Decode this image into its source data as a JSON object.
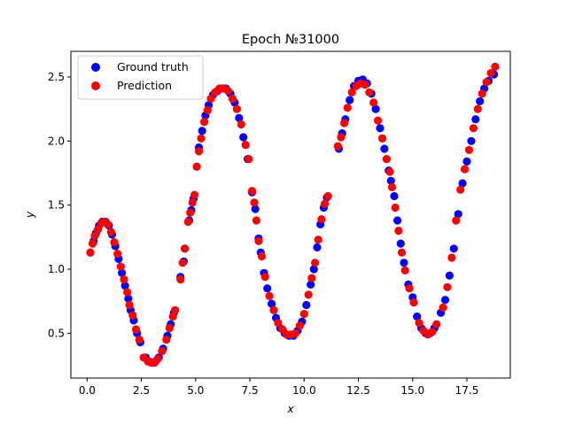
{
  "chart_data": {
    "type": "scatter",
    "title": "Epoch №31000",
    "xlabel": "x",
    "ylabel": "y",
    "xlim": [
      -0.75,
      19.5
    ],
    "ylim": [
      0.15,
      2.7
    ],
    "xticks": [
      0.0,
      2.5,
      5.0,
      7.5,
      10.0,
      12.5,
      15.0,
      17.5
    ],
    "xtick_labels": [
      "0.0",
      "2.5",
      "5.0",
      "7.5",
      "10.0",
      "12.5",
      "15.0",
      "17.5"
    ],
    "yticks": [
      0.5,
      1.0,
      1.5,
      2.0,
      2.5
    ],
    "ytick_labels": [
      "0.5",
      "1.0",
      "1.5",
      "2.0",
      "2.5"
    ],
    "grid": false,
    "legend_placement": "top-left",
    "series": [
      {
        "name": "Ground truth",
        "color": "#0000ff",
        "points": [
          [
            0.15,
            1.13
          ],
          [
            0.3,
            1.22
          ],
          [
            0.4,
            1.28
          ],
          [
            0.55,
            1.34
          ],
          [
            0.7,
            1.37
          ],
          [
            0.85,
            1.37
          ],
          [
            1.0,
            1.34
          ],
          [
            1.15,
            1.27
          ],
          [
            1.3,
            1.18
          ],
          [
            1.45,
            1.08
          ],
          [
            1.6,
            0.97
          ],
          [
            1.75,
            0.87
          ],
          [
            1.9,
            0.77
          ],
          [
            2.0,
            0.68
          ],
          [
            2.15,
            0.6
          ],
          [
            2.3,
            0.5
          ],
          [
            2.45,
            0.43
          ],
          [
            2.7,
            0.31
          ],
          [
            2.85,
            0.28
          ],
          [
            3.0,
            0.27
          ],
          [
            3.15,
            0.28
          ],
          [
            3.3,
            0.31
          ],
          [
            3.5,
            0.38
          ],
          [
            3.7,
            0.48
          ],
          [
            3.85,
            0.57
          ],
          [
            4.0,
            0.66
          ],
          [
            4.3,
            0.94
          ],
          [
            4.45,
            1.06
          ],
          [
            4.5,
            1.16
          ],
          [
            4.7,
            1.38
          ],
          [
            4.8,
            1.46
          ],
          [
            4.9,
            1.55
          ],
          [
            5.05,
            1.8
          ],
          [
            5.15,
            1.95
          ],
          [
            5.3,
            2.08
          ],
          [
            5.45,
            2.2
          ],
          [
            5.6,
            2.28
          ],
          [
            5.8,
            2.36
          ],
          [
            6.0,
            2.39
          ],
          [
            6.2,
            2.41
          ],
          [
            6.4,
            2.41
          ],
          [
            6.6,
            2.37
          ],
          [
            6.8,
            2.3
          ],
          [
            7.0,
            2.18
          ],
          [
            7.2,
            2.03
          ],
          [
            7.4,
            1.86
          ],
          [
            7.6,
            1.6
          ],
          [
            7.75,
            1.47
          ],
          [
            7.9,
            1.24
          ],
          [
            8.0,
            1.13
          ],
          [
            8.15,
            0.97
          ],
          [
            8.3,
            0.85
          ],
          [
            8.5,
            0.73
          ],
          [
            8.7,
            0.62
          ],
          [
            8.9,
            0.54
          ],
          [
            9.1,
            0.5
          ],
          [
            9.3,
            0.48
          ],
          [
            9.5,
            0.48
          ],
          [
            9.7,
            0.52
          ],
          [
            9.9,
            0.59
          ],
          [
            10.1,
            0.72
          ],
          [
            10.3,
            0.88
          ],
          [
            10.45,
            1.0
          ],
          [
            10.6,
            1.17
          ],
          [
            10.75,
            1.35
          ],
          [
            10.9,
            1.48
          ],
          [
            11.05,
            1.56
          ],
          [
            11.6,
            1.94
          ],
          [
            11.75,
            2.06
          ],
          [
            11.9,
            2.17
          ],
          [
            12.1,
            2.32
          ],
          [
            12.3,
            2.43
          ],
          [
            12.5,
            2.47
          ],
          [
            12.7,
            2.48
          ],
          [
            12.9,
            2.45
          ],
          [
            13.1,
            2.37
          ],
          [
            13.3,
            2.25
          ],
          [
            13.5,
            2.1
          ],
          [
            13.7,
            1.94
          ],
          [
            13.9,
            1.77
          ],
          [
            14.0,
            1.69
          ],
          [
            14.15,
            1.57
          ],
          [
            14.3,
            1.38
          ],
          [
            14.45,
            1.2
          ],
          [
            14.6,
            1.05
          ],
          [
            14.8,
            0.88
          ],
          [
            15.0,
            0.78
          ],
          [
            15.2,
            0.63
          ],
          [
            15.4,
            0.54
          ],
          [
            15.6,
            0.5
          ],
          [
            15.8,
            0.5
          ],
          [
            16.0,
            0.54
          ],
          [
            16.3,
            0.66
          ],
          [
            16.5,
            0.76
          ],
          [
            16.7,
            0.95
          ],
          [
            16.9,
            1.16
          ],
          [
            17.1,
            1.43
          ],
          [
            17.3,
            1.67
          ],
          [
            17.5,
            1.84
          ],
          [
            17.7,
            2.0
          ],
          [
            17.9,
            2.17
          ],
          [
            18.1,
            2.31
          ],
          [
            18.3,
            2.41
          ],
          [
            18.5,
            2.47
          ],
          [
            18.75,
            2.52
          ]
        ]
      },
      {
        "name": "Prediction",
        "color": "#ff0000",
        "points": [
          [
            0.15,
            1.13
          ],
          [
            0.25,
            1.2
          ],
          [
            0.35,
            1.26
          ],
          [
            0.5,
            1.31
          ],
          [
            0.65,
            1.36
          ],
          [
            0.8,
            1.37
          ],
          [
            0.95,
            1.35
          ],
          [
            1.1,
            1.29
          ],
          [
            1.25,
            1.21
          ],
          [
            1.4,
            1.12
          ],
          [
            1.55,
            1.02
          ],
          [
            1.7,
            0.92
          ],
          [
            1.85,
            0.82
          ],
          [
            1.95,
            0.72
          ],
          [
            2.1,
            0.64
          ],
          [
            2.25,
            0.53
          ],
          [
            2.4,
            0.45
          ],
          [
            2.6,
            0.31
          ],
          [
            2.8,
            0.28
          ],
          [
            2.95,
            0.27
          ],
          [
            3.1,
            0.27
          ],
          [
            3.25,
            0.3
          ],
          [
            3.45,
            0.36
          ],
          [
            3.65,
            0.45
          ],
          [
            3.8,
            0.54
          ],
          [
            3.95,
            0.63
          ],
          [
            4.05,
            0.68
          ],
          [
            4.3,
            0.92
          ],
          [
            4.4,
            1.05
          ],
          [
            4.5,
            1.16
          ],
          [
            4.65,
            1.37
          ],
          [
            4.75,
            1.44
          ],
          [
            4.85,
            1.52
          ],
          [
            4.95,
            1.58
          ],
          [
            5.05,
            1.8
          ],
          [
            5.15,
            1.92
          ],
          [
            5.25,
            2.02
          ],
          [
            5.4,
            2.15
          ],
          [
            5.55,
            2.24
          ],
          [
            5.7,
            2.33
          ],
          [
            5.9,
            2.38
          ],
          [
            6.1,
            2.41
          ],
          [
            6.3,
            2.41
          ],
          [
            6.5,
            2.39
          ],
          [
            6.7,
            2.33
          ],
          [
            6.9,
            2.25
          ],
          [
            7.1,
            2.13
          ],
          [
            7.3,
            1.97
          ],
          [
            7.45,
            1.86
          ],
          [
            7.6,
            1.61
          ],
          [
            7.7,
            1.52
          ],
          [
            7.8,
            1.38
          ],
          [
            7.9,
            1.22
          ],
          [
            8.05,
            1.1
          ],
          [
            8.2,
            0.94
          ],
          [
            8.4,
            0.79
          ],
          [
            8.6,
            0.68
          ],
          [
            8.8,
            0.58
          ],
          [
            9.0,
            0.53
          ],
          [
            9.2,
            0.49
          ],
          [
            9.4,
            0.49
          ],
          [
            9.6,
            0.5
          ],
          [
            9.8,
            0.56
          ],
          [
            10.0,
            0.65
          ],
          [
            10.2,
            0.8
          ],
          [
            10.35,
            0.93
          ],
          [
            10.5,
            1.05
          ],
          [
            10.65,
            1.23
          ],
          [
            10.8,
            1.39
          ],
          [
            10.95,
            1.51
          ],
          [
            11.1,
            1.57
          ],
          [
            11.55,
            1.96
          ],
          [
            11.7,
            2.03
          ],
          [
            11.85,
            2.14
          ],
          [
            12.0,
            2.26
          ],
          [
            12.2,
            2.38
          ],
          [
            12.4,
            2.43
          ],
          [
            12.6,
            2.45
          ],
          [
            12.8,
            2.44
          ],
          [
            13.0,
            2.38
          ],
          [
            13.2,
            2.3
          ],
          [
            13.4,
            2.16
          ],
          [
            13.6,
            2.02
          ],
          [
            13.8,
            1.86
          ],
          [
            13.95,
            1.76
          ],
          [
            14.05,
            1.64
          ],
          [
            14.2,
            1.48
          ],
          [
            14.35,
            1.3
          ],
          [
            14.5,
            1.13
          ],
          [
            14.65,
            0.99
          ],
          [
            14.85,
            0.85
          ],
          [
            15.05,
            0.74
          ],
          [
            15.3,
            0.58
          ],
          [
            15.5,
            0.52
          ],
          [
            15.7,
            0.49
          ],
          [
            15.9,
            0.51
          ],
          [
            16.1,
            0.57
          ],
          [
            16.4,
            0.7
          ],
          [
            16.6,
            0.86
          ],
          [
            16.8,
            1.09
          ],
          [
            17.0,
            1.38
          ],
          [
            17.2,
            1.62
          ],
          [
            17.4,
            1.78
          ],
          [
            17.6,
            1.93
          ],
          [
            17.8,
            2.1
          ],
          [
            18.0,
            2.25
          ],
          [
            18.2,
            2.37
          ],
          [
            18.4,
            2.46
          ],
          [
            18.6,
            2.53
          ],
          [
            18.8,
            2.58
          ]
        ]
      }
    ]
  }
}
